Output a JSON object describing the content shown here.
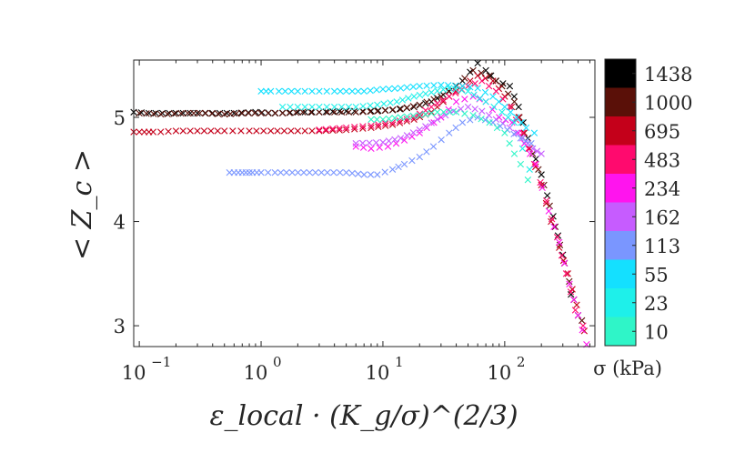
{
  "chart_data": {
    "type": "scatter",
    "marker": "x",
    "xscale": "log",
    "xlim": [
      0.09,
      550
    ],
    "ylim": [
      2.8,
      5.55
    ],
    "xlabel": "ε_local · (K_g/σ)^(2/3)",
    "ylabel": "< Z_c >",
    "x_ticks": [
      {
        "value": 0.1,
        "label": "10",
        "exp": "−1"
      },
      {
        "value": 1,
        "label": "10",
        "exp": "0"
      },
      {
        "value": 10,
        "label": "10",
        "exp": "1"
      },
      {
        "value": 100,
        "label": "10",
        "exp": "2"
      }
    ],
    "y_ticks": [
      3,
      4,
      5
    ],
    "colorbar": {
      "title": "σ (kPa)",
      "levels": [
        "1438",
        "1000",
        "695",
        "483",
        "234",
        "162",
        "113",
        "55",
        "23",
        "10"
      ],
      "colors": [
        "#000000",
        "#5a1008",
        "#c4001a",
        "#ff0a6e",
        "#ff14ee",
        "#c65cff",
        "#7a96ff",
        "#14e0ff",
        "#1ef0ea",
        "#2ff5c8"
      ]
    },
    "series": [
      {
        "name": "1438",
        "color": "#000000",
        "points": [
          [
            0.09,
            5.05
          ],
          [
            0.12,
            5.04
          ],
          [
            0.2,
            5.04
          ],
          [
            0.3,
            5.04
          ],
          [
            0.4,
            5.04
          ],
          [
            0.6,
            5.04
          ],
          [
            0.9,
            5.05
          ],
          [
            1.3,
            5.04
          ],
          [
            2,
            5.05
          ],
          [
            3,
            5.05
          ],
          [
            5,
            5.06
          ],
          [
            8,
            5.06
          ],
          [
            12,
            5.07
          ],
          [
            18,
            5.1
          ],
          [
            25,
            5.15
          ],
          [
            35,
            5.25
          ],
          [
            45,
            5.35
          ],
          [
            60,
            5.52
          ],
          [
            70,
            5.45
          ],
          [
            85,
            5.35
          ],
          [
            110,
            5.3
          ],
          [
            130,
            5.1
          ],
          [
            155,
            4.8
          ],
          [
            180,
            4.6
          ],
          [
            200,
            4.45
          ],
          [
            250,
            4.05
          ],
          [
            300,
            3.68
          ],
          [
            350,
            3.3
          ],
          [
            400,
            3.1
          ]
        ]
      },
      {
        "name": "1000",
        "color": "#5a1008",
        "points": [
          [
            0.1,
            5.04
          ],
          [
            0.15,
            5.03
          ],
          [
            0.25,
            5.04
          ],
          [
            0.35,
            5.04
          ],
          [
            0.5,
            5.03
          ],
          [
            0.7,
            5.04
          ],
          [
            1,
            5.04
          ],
          [
            1.5,
            5.04
          ],
          [
            2.2,
            5.05
          ],
          [
            3.5,
            5.05
          ],
          [
            6,
            5.05
          ],
          [
            9,
            5.06
          ],
          [
            14,
            5.08
          ],
          [
            20,
            5.12
          ],
          [
            30,
            5.2
          ],
          [
            40,
            5.3
          ],
          [
            55,
            5.45
          ],
          [
            75,
            5.4
          ],
          [
            95,
            5.3
          ],
          [
            120,
            5.15
          ],
          [
            145,
            4.85
          ],
          [
            170,
            4.65
          ],
          [
            210,
            4.35
          ],
          [
            260,
            3.95
          ],
          [
            310,
            3.6
          ],
          [
            370,
            3.25
          ],
          [
            430,
            3.05
          ]
        ]
      },
      {
        "name": "695",
        "color": "#c4001a",
        "points": [
          [
            0.09,
            4.86
          ],
          [
            0.1,
            4.86
          ],
          [
            0.11,
            4.86
          ],
          [
            0.12,
            4.86
          ],
          [
            0.13,
            4.86
          ],
          [
            0.15,
            4.86
          ],
          [
            0.2,
            4.87
          ],
          [
            0.3,
            4.87
          ],
          [
            0.5,
            4.87
          ],
          [
            0.8,
            4.87
          ],
          [
            1.2,
            4.87
          ],
          [
            2,
            4.87
          ],
          [
            3,
            4.87
          ],
          [
            5,
            4.88
          ],
          [
            8,
            4.9
          ],
          [
            12,
            4.93
          ],
          [
            18,
            4.98
          ],
          [
            25,
            5.05
          ],
          [
            35,
            5.2
          ],
          [
            45,
            5.3
          ],
          [
            60,
            5.4
          ],
          [
            80,
            5.35
          ],
          [
            100,
            5.2
          ],
          [
            130,
            5.0
          ],
          [
            160,
            4.7
          ],
          [
            200,
            4.35
          ],
          [
            240,
            4.0
          ],
          [
            280,
            3.75
          ],
          [
            330,
            3.5
          ],
          [
            390,
            3.2
          ],
          [
            450,
            2.95
          ]
        ]
      },
      {
        "name": "483",
        "color": "#ff0a6e",
        "points": [
          [
            3,
            4.88
          ],
          [
            5,
            4.9
          ],
          [
            8,
            4.92
          ],
          [
            12,
            4.95
          ],
          [
            18,
            5.0
          ],
          [
            25,
            5.1
          ],
          [
            35,
            5.2
          ],
          [
            50,
            5.3
          ],
          [
            65,
            5.35
          ],
          [
            85,
            5.25
          ],
          [
            110,
            5.1
          ],
          [
            140,
            4.85
          ],
          [
            175,
            4.55
          ],
          [
            220,
            4.2
          ],
          [
            270,
            3.85
          ],
          [
            320,
            3.5
          ],
          [
            380,
            3.15
          ],
          [
            440,
            3.0
          ]
        ]
      },
      {
        "name": "234",
        "color": "#ff14ee",
        "points": [
          [
            6,
            4.72
          ],
          [
            8,
            4.7
          ],
          [
            11,
            4.72
          ],
          [
            15,
            4.78
          ],
          [
            20,
            4.85
          ],
          [
            30,
            5.0
          ],
          [
            40,
            5.15
          ],
          [
            55,
            5.2
          ],
          [
            70,
            5.15
          ],
          [
            90,
            5.0
          ],
          [
            115,
            4.95
          ],
          [
            145,
            4.75
          ],
          [
            180,
            4.55
          ],
          [
            230,
            4.1
          ],
          [
            280,
            3.8
          ],
          [
            340,
            3.4
          ],
          [
            400,
            3.1
          ],
          [
            470,
            2.82
          ]
        ]
      },
      {
        "name": "162",
        "color": "#c65cff",
        "points": [
          [
            6,
            4.75
          ],
          [
            10,
            4.76
          ],
          [
            14,
            4.8
          ],
          [
            20,
            4.88
          ],
          [
            28,
            4.98
          ],
          [
            38,
            5.06
          ],
          [
            50,
            5.1
          ],
          [
            65,
            5.06
          ],
          [
            85,
            4.98
          ],
          [
            110,
            4.9
          ],
          [
            140,
            4.8
          ],
          [
            170,
            4.7
          ],
          [
            200,
            4.65
          ]
        ]
      },
      {
        "name": "113",
        "color": "#7a96ff",
        "points": [
          [
            0.55,
            4.47
          ],
          [
            0.6,
            4.47
          ],
          [
            0.65,
            4.47
          ],
          [
            0.7,
            4.47
          ],
          [
            0.75,
            4.47
          ],
          [
            0.8,
            4.47
          ],
          [
            0.85,
            4.47
          ],
          [
            1,
            4.47
          ],
          [
            1.3,
            4.47
          ],
          [
            1.8,
            4.47
          ],
          [
            2.5,
            4.47
          ],
          [
            3.5,
            4.47
          ],
          [
            5,
            4.47
          ],
          [
            7,
            4.45
          ],
          [
            9,
            4.45
          ],
          [
            12,
            4.5
          ],
          [
            15,
            4.55
          ],
          [
            20,
            4.62
          ],
          [
            26,
            4.72
          ],
          [
            35,
            4.85
          ],
          [
            45,
            4.95
          ],
          [
            60,
            5.0
          ],
          [
            80,
            4.95
          ],
          [
            105,
            4.88
          ],
          [
            135,
            4.8
          ],
          [
            165,
            4.75
          ]
        ]
      },
      {
        "name": "55",
        "color": "#14e0ff",
        "points": [
          [
            1,
            5.25
          ],
          [
            1.1,
            5.25
          ],
          [
            1.2,
            5.25
          ],
          [
            1.4,
            5.25
          ],
          [
            2,
            5.25
          ],
          [
            3,
            5.25
          ],
          [
            4,
            5.25
          ],
          [
            5,
            5.25
          ],
          [
            7,
            5.25
          ],
          [
            10,
            5.27
          ],
          [
            14,
            5.28
          ],
          [
            20,
            5.3
          ],
          [
            30,
            5.31
          ],
          [
            45,
            5.3
          ],
          [
            60,
            5.28
          ],
          [
            80,
            5.2
          ],
          [
            100,
            5.1
          ],
          [
            125,
            5.0
          ],
          [
            150,
            4.9
          ],
          [
            175,
            4.85
          ]
        ]
      },
      {
        "name": "23",
        "color": "#1ef0ea",
        "points": [
          [
            1.5,
            5.1
          ],
          [
            2,
            5.1
          ],
          [
            3,
            5.1
          ],
          [
            4,
            5.1
          ],
          [
            6,
            5.1
          ],
          [
            9,
            5.12
          ],
          [
            13,
            5.15
          ],
          [
            18,
            5.2
          ],
          [
            25,
            5.24
          ],
          [
            35,
            5.28
          ],
          [
            50,
            5.25
          ],
          [
            70,
            5.15
          ],
          [
            95,
            5.05
          ],
          [
            120,
            4.95
          ],
          [
            140,
            4.7
          ],
          [
            160,
            4.5
          ]
        ]
      },
      {
        "name": "10",
        "color": "#2ff5c8",
        "points": [
          [
            8,
            4.98
          ],
          [
            10,
            4.98
          ],
          [
            14,
            5.0
          ],
          [
            20,
            5.02
          ],
          [
            28,
            5.05
          ],
          [
            40,
            5.05
          ],
          [
            55,
            5.02
          ],
          [
            75,
            4.95
          ],
          [
            100,
            4.85
          ],
          [
            120,
            4.65
          ],
          [
            135,
            4.55
          ],
          [
            155,
            4.4
          ]
        ]
      }
    ]
  }
}
